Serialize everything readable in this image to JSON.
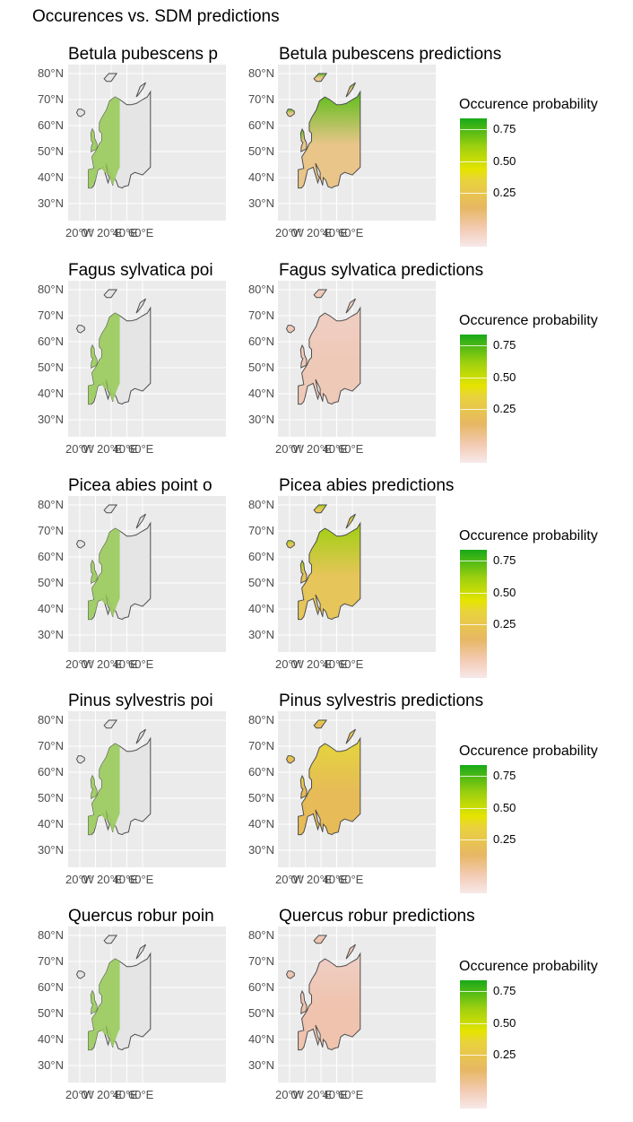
{
  "title": "Occurences vs. SDM predictions",
  "axis": {
    "lat_ticks": [
      "80°N",
      "70°N",
      "60°N",
      "50°N",
      "40°N",
      "30°N"
    ],
    "lon_ticks": [
      "20°W",
      "0°",
      "20°E",
      "40°E",
      "60°E"
    ]
  },
  "legend": {
    "title": "Occurence probability",
    "labels": [
      "0.75",
      "0.50",
      "0.25"
    ]
  },
  "colors": {
    "panel_bg": "#ebebeb",
    "grid": "#ffffff",
    "outline": "#4d4d4d",
    "land_fill": "#e5e5e5",
    "points": "#9ccc5f",
    "scale_low": "#f7e9e9",
    "scale_mid_low": "#e7b764",
    "scale_mid": "#e6e400",
    "scale_high": "#18a91a"
  },
  "panels": [
    {
      "left_title": "Betula pubescens p",
      "right_title": "Betula pubescens predictions",
      "pred_base": "#e9c58a",
      "pred_north": "#5cbe18"
    },
    {
      "left_title": "Fagus sylvatica poi",
      "right_title": "Fagus sylvatica predictions",
      "pred_base": "#efc9b8",
      "pred_north": "#efcfc4"
    },
    {
      "left_title": "Picea abies point o",
      "right_title": "Picea abies predictions",
      "pred_base": "#e6c55a",
      "pred_north": "#9ed00f"
    },
    {
      "left_title": "Pinus sylvestris poi",
      "right_title": "Pinus sylvestris predictions",
      "pred_base": "#e6bb58",
      "pred_north": "#e4d63a"
    },
    {
      "left_title": "Quercus robur poin",
      "right_title": "Quercus robur predictions",
      "pred_base": "#efc3ad",
      "pred_north": "#efcfc6"
    }
  ],
  "chart_data": {
    "type": "heatmap",
    "title": "Occurences vs. SDM predictions",
    "xlabel": "",
    "ylabel": "",
    "x_ticks": [
      "20°W",
      "0°",
      "20°E",
      "40°E",
      "60°E"
    ],
    "y_ticks": [
      "80°N",
      "70°N",
      "60°N",
      "50°N",
      "40°N",
      "30°N"
    ],
    "xlim": [
      -30,
      70
    ],
    "ylim": [
      25,
      85
    ],
    "color_scale": {
      "title": "Occurence probability",
      "breaks": [
        0.25,
        0.5,
        0.75
      ],
      "low": "#f7e9e9",
      "high": "#18a91a"
    },
    "species": [
      "Betula pubescens",
      "Fagus sylvatica",
      "Picea abies",
      "Pinus sylvestris",
      "Quercus robur"
    ]
  }
}
